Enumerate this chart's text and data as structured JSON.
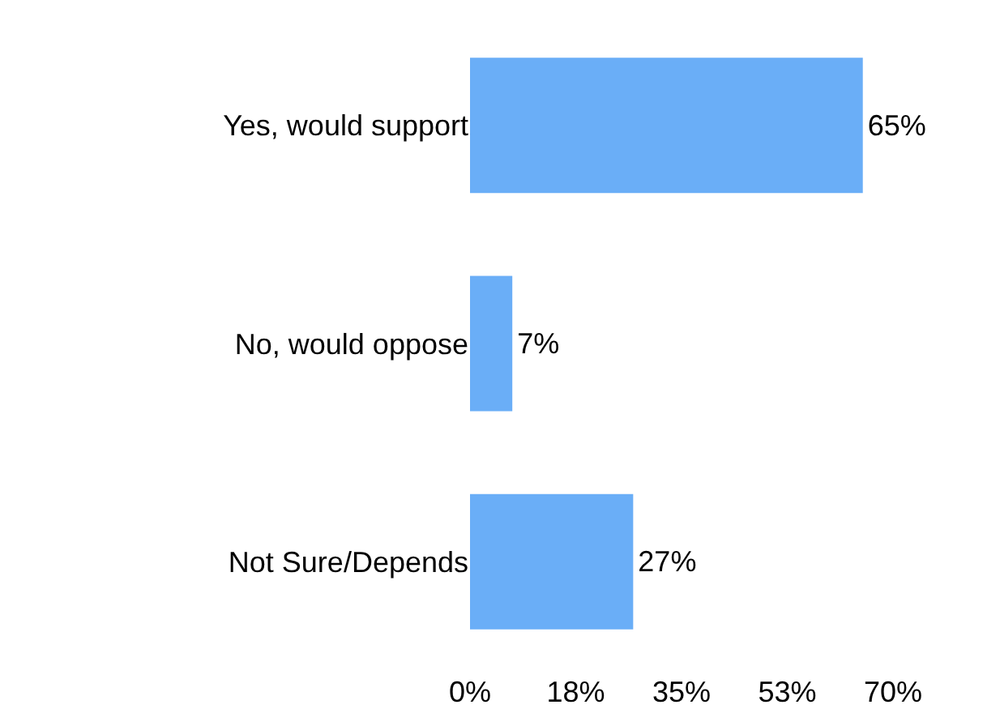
{
  "chart_data": {
    "type": "bar",
    "orientation": "horizontal",
    "categories": [
      "Yes, would support",
      "No, would oppose",
      "Not Sure/Depends"
    ],
    "values": [
      65,
      7,
      27
    ],
    "value_labels": [
      "65%",
      "7%",
      "27%"
    ],
    "color": "#6aaef7",
    "xlim": [
      0,
      70
    ],
    "xticks": [
      {
        "value": 0,
        "label": "0%"
      },
      {
        "value": 17.5,
        "label": "18%"
      },
      {
        "value": 35,
        "label": "35%"
      },
      {
        "value": 52.5,
        "label": "53%"
      },
      {
        "value": 70,
        "label": "70%"
      }
    ]
  }
}
